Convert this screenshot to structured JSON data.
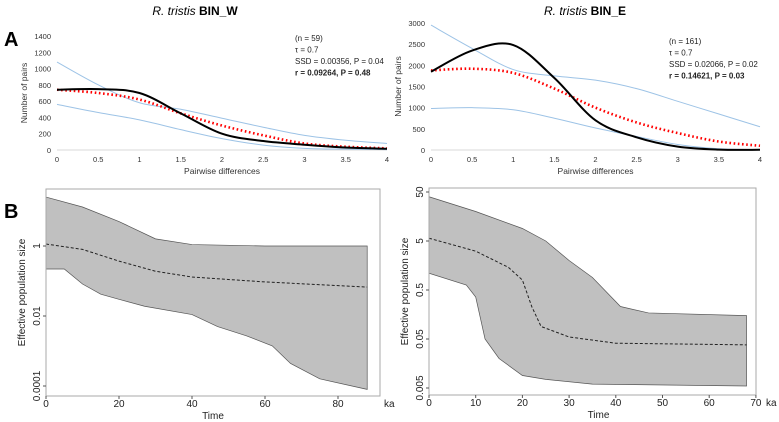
{
  "panel_labels": [
    "A",
    "B"
  ],
  "colors": {
    "observed": "#000000",
    "expected": "#ff0000",
    "bounds": "#9dc3e6",
    "band": "#c0c0c0",
    "median": "#222222"
  },
  "chart_data": [
    {
      "type": "line",
      "panel": "A",
      "title_italic": "R. tristis",
      "title_bold": "BIN_W",
      "xlabel": "Pairwise differences",
      "ylabel": "Number of pairs",
      "xlim": [
        0,
        4
      ],
      "ylim": [
        0,
        1400
      ],
      "xticks": [
        "0",
        "0.5",
        "1",
        "1.5",
        "2",
        "2.5",
        "3",
        "3.5",
        "4"
      ],
      "yticks": [
        "0",
        "200",
        "400",
        "600",
        "800",
        "1000",
        "1200",
        "1400"
      ],
      "annotation": [
        "(n = 59)",
        "τ = 0.7",
        "SSD = 0.00356, P = 0.04",
        "r = 0.09264, P = 0.48"
      ],
      "x": [
        0,
        0.5,
        1,
        1.5,
        2,
        2.5,
        3,
        3.5,
        4
      ],
      "series": [
        {
          "role": "upper",
          "values": [
            1080,
            800,
            580,
            500,
            390,
            280,
            180,
            120,
            80
          ]
        },
        {
          "role": "lower",
          "values": [
            560,
            460,
            370,
            250,
            140,
            60,
            20,
            10,
            5
          ]
        },
        {
          "role": "expected",
          "values": [
            740,
            700,
            620,
            450,
            300,
            180,
            80,
            40,
            20
          ]
        },
        {
          "role": "observed",
          "values": [
            740,
            748,
            700,
            450,
            200,
            110,
            65,
            30,
            15
          ]
        }
      ]
    },
    {
      "type": "line",
      "panel": "A",
      "title_italic": "R. tristis",
      "title_bold": "BIN_E",
      "xlabel": "Pairwise differences",
      "ylabel": "Number of pairs",
      "xlim": [
        0,
        4
      ],
      "ylim": [
        0,
        3000
      ],
      "xticks": [
        "0",
        "0.5",
        "1",
        "1.5",
        "2",
        "2.5",
        "3",
        "3.5",
        "4"
      ],
      "yticks": [
        "0",
        "500",
        "1000",
        "1500",
        "2000",
        "2500",
        "3000"
      ],
      "annotation": [
        "(n = 161)",
        "τ = 0.7",
        "SSD = 0.02066, P = 0.02",
        "r = 0.14621, P = 0.03"
      ],
      "x": [
        0,
        0.5,
        1,
        1.5,
        2,
        2.5,
        3,
        3.5,
        4
      ],
      "series": [
        {
          "role": "upper",
          "values": [
            2950,
            2400,
            1900,
            1750,
            1650,
            1450,
            1150,
            850,
            550
          ]
        },
        {
          "role": "lower",
          "values": [
            980,
            1000,
            950,
            750,
            520,
            320,
            130,
            30,
            10
          ]
        },
        {
          "role": "expected",
          "values": [
            1880,
            1920,
            1820,
            1450,
            1000,
            650,
            400,
            200,
            100
          ]
        },
        {
          "role": "observed",
          "values": [
            1850,
            2350,
            2480,
            1700,
            700,
            300,
            80,
            10,
            5
          ]
        }
      ]
    },
    {
      "type": "area",
      "panel": "B",
      "xlabel": "Time",
      "xunit": "ka",
      "ylabel": "Effective population size",
      "xlim": [
        0,
        90
      ],
      "ylim": [
        6e-05,
        60
      ],
      "yscale": "log",
      "xticks": [
        "0",
        "20",
        "40",
        "60",
        "80"
      ],
      "yticks": [
        "0.0001",
        "0.01",
        "1"
      ],
      "upper": {
        "x": [
          0,
          10,
          20,
          30,
          40,
          60,
          88
        ],
        "y": [
          25,
          13,
          5,
          1.6,
          1.1,
          1.0,
          1.0
        ]
      },
      "median": {
        "x": [
          0,
          10,
          20,
          30,
          40,
          60,
          88
        ],
        "y": [
          1.14,
          0.8,
          0.37,
          0.19,
          0.13,
          0.094,
          0.067
        ]
      },
      "lower": {
        "x": [
          0,
          5,
          10,
          15,
          20,
          27,
          40,
          47,
          55,
          62,
          67,
          75,
          88
        ],
        "y": [
          0.22,
          0.22,
          0.082,
          0.042,
          0.03,
          0.019,
          0.011,
          0.005,
          0.0027,
          0.0014,
          0.00044,
          0.00016,
          8e-05
        ]
      }
    },
    {
      "type": "area",
      "panel": "B",
      "xlabel": "Time",
      "xunit": "ka",
      "ylabel": "Effective population size",
      "xlim": [
        0,
        70
      ],
      "ylim": [
        0.004,
        60
      ],
      "yscale": "log",
      "xticks": [
        "0",
        "10",
        "20",
        "30",
        "40",
        "50",
        "60",
        "70"
      ],
      "yticks": [
        "0.005",
        "0.05",
        "0.5",
        "5",
        "50"
      ],
      "upper": {
        "x": [
          0,
          10,
          20,
          25,
          30,
          35,
          41,
          47,
          68
        ],
        "y": [
          40,
          20,
          9,
          5,
          2,
          0.9,
          0.23,
          0.17,
          0.15
        ]
      },
      "median": {
        "x": [
          0,
          10,
          17,
          20,
          22,
          24,
          30,
          40,
          68
        ],
        "y": [
          5.7,
          3.1,
          1.45,
          0.8,
          0.23,
          0.09,
          0.055,
          0.041,
          0.038
        ]
      },
      "lower": {
        "x": [
          0,
          8,
          10,
          12,
          15,
          20,
          25,
          35,
          68
        ],
        "y": [
          1.1,
          0.63,
          0.36,
          0.05,
          0.02,
          0.009,
          0.0075,
          0.006,
          0.0055
        ]
      }
    }
  ]
}
